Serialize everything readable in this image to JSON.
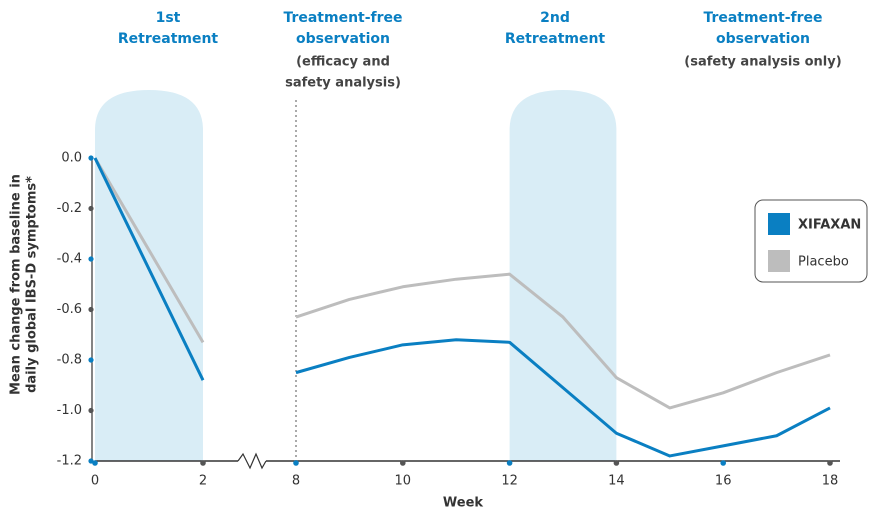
{
  "chart_data": {
    "type": "line",
    "phases": [
      {
        "title": [
          "1st",
          "Retreatment"
        ]
      },
      {
        "title": [
          "Treatment-free",
          "observation"
        ],
        "note": [
          "(efficacy and",
          "safety analysis)"
        ]
      },
      {
        "title": [
          "2nd",
          "Retreatment"
        ]
      },
      {
        "title": [
          "Treatment-free",
          "observation"
        ],
        "note": [
          "(safety analysis only)"
        ]
      }
    ],
    "y_label": [
      "Mean change from baseline in",
      "daily global IBS-D symptoms*"
    ],
    "x_label": "Week",
    "x": [
      0,
      2,
      8,
      9,
      10,
      11,
      12,
      13,
      14,
      15,
      16,
      17,
      18
    ],
    "x_segments": [
      [
        0,
        2
      ],
      [
        8,
        18
      ]
    ],
    "xticks": [
      0,
      2,
      8,
      10,
      12,
      14,
      16,
      18
    ],
    "ylim": [
      -1.2,
      0
    ],
    "yticks": [
      {
        "value": 0,
        "label": "0.0"
      },
      {
        "value": -0.2,
        "label": "-0.2"
      },
      {
        "value": -0.4,
        "label": "-0.4"
      },
      {
        "value": -0.6,
        "label": "-0.6"
      },
      {
        "value": -0.8,
        "label": "-0.8"
      },
      {
        "value": -1.0,
        "label": "-1.0"
      },
      {
        "value": -1.2,
        "label": "-1.2"
      }
    ],
    "bands": [
      [
        0,
        2
      ],
      [
        12,
        14
      ]
    ],
    "band_color": "#d9edf6",
    "vline": 8,
    "series": [
      {
        "name": "XIFAXAN",
        "color": "#0a7fc2",
        "values": [
          0,
          -0.88,
          -0.85,
          -0.79,
          -0.74,
          -0.72,
          -0.73,
          -0.91,
          -1.09,
          -1.18,
          -1.14,
          -1.1,
          -0.99
        ]
      },
      {
        "name": "Placebo",
        "color": "#bdbdbd",
        "values": [
          0,
          -0.73,
          -0.63,
          -0.56,
          -0.51,
          -0.48,
          -0.46,
          -0.63,
          -0.87,
          -0.99,
          -0.93,
          -0.85,
          -0.78
        ]
      }
    ]
  }
}
